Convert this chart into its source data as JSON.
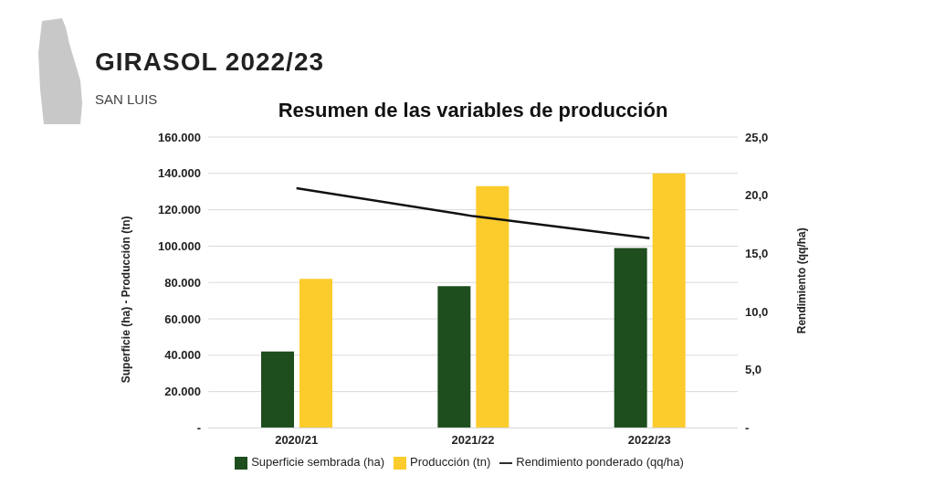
{
  "chart_data": {
    "type": "bar",
    "title": "GIRASOL 2022/23",
    "subtitle": "SAN LUIS",
    "annotations": [
      "Resumen de las variables de producción"
    ],
    "categories": [
      "2020/21",
      "2021/22",
      "2022/23"
    ],
    "series": [
      {
        "name": "Superficie sembrada (ha)",
        "color": "#1e4d1e",
        "values": [
          42000,
          78000,
          99000
        ]
      },
      {
        "name": "Producción (tn)",
        "color": "#fccb2c",
        "values": [
          82000,
          133000,
          140000
        ]
      },
      {
        "name": "Rendimiento ponderado (qq/ha)",
        "type": "line",
        "axis": "y2",
        "color": "#111111",
        "values": [
          20.6,
          18.2,
          16.3
        ]
      }
    ],
    "ylabel": "Superficie (ha) - Producción (tn)",
    "y2label": "Rendimiento (qq/ha)",
    "ylim": [
      0,
      160000
    ],
    "yticks": [
      {
        "value": 0,
        "label": "-"
      },
      {
        "value": 20000,
        "label": "20.000"
      },
      {
        "value": 40000,
        "label": "40.000"
      },
      {
        "value": 60000,
        "label": "60.000"
      },
      {
        "value": 80000,
        "label": "80.000"
      },
      {
        "value": 100000,
        "label": "100.000"
      },
      {
        "value": 120000,
        "label": "120.000"
      },
      {
        "value": 140000,
        "label": "140.000"
      },
      {
        "value": 160000,
        "label": "160.000"
      }
    ],
    "y2lim": [
      0,
      25
    ],
    "y2ticks": [
      {
        "value": 0,
        "label": "-"
      },
      {
        "value": 5,
        "label": "5,0"
      },
      {
        "value": 10,
        "label": "10,0"
      },
      {
        "value": 15,
        "label": "15,0"
      },
      {
        "value": 20,
        "label": "20,0"
      },
      {
        "value": 25,
        "label": "25,0"
      }
    ],
    "grid": "y",
    "legend": "bottom",
    "marker": "none",
    "line_style": "solid"
  }
}
